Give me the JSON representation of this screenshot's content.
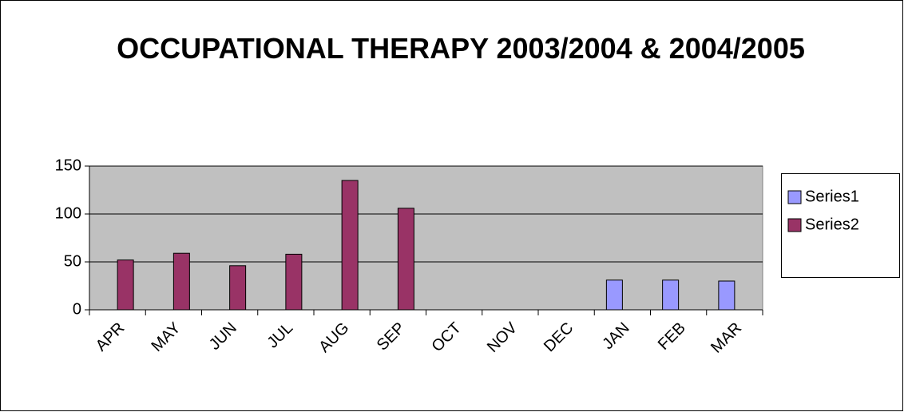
{
  "chart_data": {
    "type": "bar",
    "title": "OCCUPATIONAL THERAPY 2003/2004 & 2004/2005",
    "categories": [
      "APR",
      "MAY",
      "JUN",
      "JUL",
      "AUG",
      "SEP",
      "OCT",
      "NOV",
      "DEC",
      "JAN",
      "FEB",
      "MAR"
    ],
    "series": [
      {
        "name": "Series1",
        "color": "#9999ff",
        "values": [
          null,
          null,
          null,
          null,
          null,
          null,
          null,
          null,
          null,
          31,
          31,
          30
        ]
      },
      {
        "name": "Series2",
        "color": "#993366",
        "values": [
          52,
          59,
          46,
          58,
          135,
          106,
          null,
          null,
          null,
          null,
          null,
          null
        ]
      }
    ],
    "ylim": [
      0,
      150
    ],
    "yticks": [
      0,
      50,
      100,
      150
    ],
    "grid": true,
    "legend": "right"
  }
}
